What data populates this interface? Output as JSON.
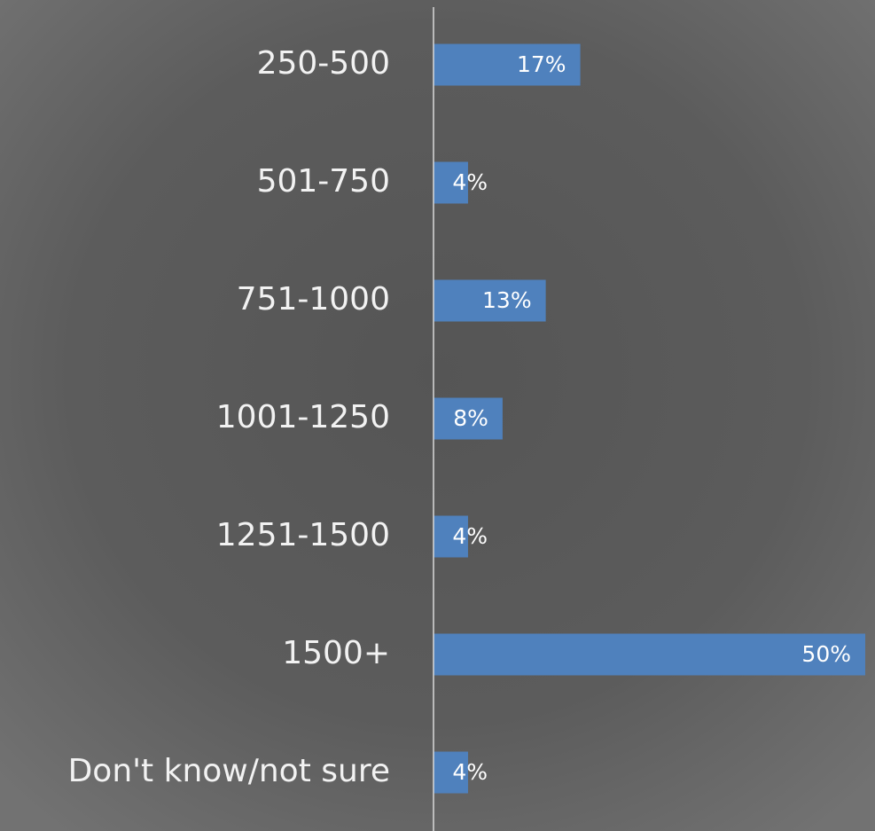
{
  "chart_data": {
    "type": "bar",
    "orientation": "horizontal",
    "categories": [
      "250-500",
      "501-750",
      "751-1000",
      "1001-1250",
      "1251-1500",
      "1500+",
      "Don't know/not sure"
    ],
    "values": [
      17,
      4,
      13,
      8,
      4,
      50,
      4
    ],
    "value_labels": [
      "17%",
      "4%",
      "13%",
      "8%",
      "4%",
      "50%",
      "4%"
    ],
    "color": "#4f81bd"
  }
}
